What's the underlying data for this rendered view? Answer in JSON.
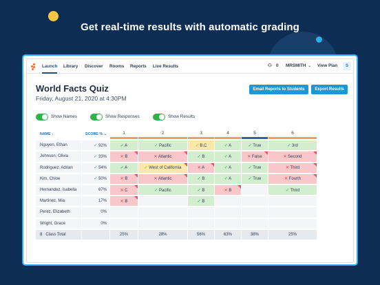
{
  "headline": "Get real-time results with automatic grading",
  "nav": {
    "items": [
      "Launch",
      "Library",
      "Discover",
      "Rooms",
      "Reports",
      "Live Results"
    ],
    "people_count": "0",
    "user": "MRSMITH",
    "view_plan": "View Plan",
    "avatar_letter": "S"
  },
  "quiz": {
    "title": "World Facts Quiz",
    "date": "Friday, August 21, 2020 at 4:30PM"
  },
  "buttons": {
    "email_reports": "Email Reports to Students",
    "export_results": "Export Results"
  },
  "toggles": {
    "show_names": "Show Names",
    "show_responses": "Show Responses",
    "show_results": "Show Results"
  },
  "table": {
    "name_header": "NAME",
    "score_header": "SCORE %",
    "question_colors": [
      "#f0a050",
      "#f0a050",
      "#f0a050",
      "#f0a050",
      "#2f5db0",
      "#f0a050"
    ],
    "questions": [
      "1",
      "2",
      "3",
      "4",
      "5",
      "6"
    ],
    "rows": [
      {
        "name": "Nguyen, Ethan",
        "score": "92%",
        "ans": [
          [
            "ok",
            "A"
          ],
          [
            "ok",
            "Pacific"
          ],
          [
            "part",
            "B,C"
          ],
          [
            "ok",
            "A"
          ],
          [
            "ok",
            "True"
          ],
          [
            "ok",
            "3rd"
          ]
        ]
      },
      {
        "name": "Johnson, Olivia",
        "score": "33%",
        "ans": [
          [
            "bad",
            "B"
          ],
          [
            "bad",
            "Atlantic"
          ],
          [
            "ok",
            "B"
          ],
          [
            "ok",
            "A"
          ],
          [
            "bad",
            "False"
          ],
          [
            "bad",
            "Second"
          ]
        ]
      },
      {
        "name": "Rodriguez, Adrian",
        "score": "54%",
        "ans": [
          [
            "ok",
            "A"
          ],
          [
            "part",
            "West of California"
          ],
          [
            "bad",
            "A"
          ],
          [
            "ok",
            "A"
          ],
          [
            "ok",
            "True"
          ],
          [
            "bad",
            "Third"
          ]
        ]
      },
      {
        "name": "Kim, Chloe",
        "score": "50%",
        "ans": [
          [
            "bad",
            "B"
          ],
          [
            "bad",
            "Atlantic"
          ],
          [
            "ok",
            "B"
          ],
          [
            "ok",
            "A"
          ],
          [
            "ok",
            "True"
          ],
          [
            "bad",
            "Fourth"
          ]
        ]
      },
      {
        "name": "Hernandez, Isabella",
        "score": "67%",
        "ans": [
          [
            "bad",
            "C"
          ],
          [
            "ok",
            "Pacific"
          ],
          [
            "ok",
            "B"
          ],
          [
            "bad",
            "B"
          ],
          [
            "emp",
            ""
          ],
          [
            "ok",
            "Third"
          ]
        ]
      },
      {
        "name": "Martinez, Mia",
        "score": "17%",
        "ans": [
          [
            "bad",
            "B"
          ],
          [
            "emp",
            ""
          ],
          [
            "ok",
            "B"
          ],
          [
            "emp",
            ""
          ],
          [
            "emp",
            ""
          ],
          [
            "emp",
            ""
          ]
        ]
      },
      {
        "name": "Perez, Elizabeth",
        "score": "0%",
        "ans": [
          [
            "emp",
            ""
          ],
          [
            "emp",
            ""
          ],
          [
            "emp",
            ""
          ],
          [
            "emp",
            ""
          ],
          [
            "emp",
            ""
          ],
          [
            "emp",
            ""
          ]
        ]
      },
      {
        "name": "Wright, Grace",
        "score": "0%",
        "ans": [
          [
            "emp",
            ""
          ],
          [
            "emp",
            ""
          ],
          [
            "emp",
            ""
          ],
          [
            "emp",
            ""
          ],
          [
            "emp",
            ""
          ],
          [
            "emp",
            ""
          ]
        ]
      }
    ],
    "total": {
      "count": "8",
      "label": "Class Total",
      "values": [
        "25%",
        "28%",
        "56%",
        "63%",
        "38%",
        "25%"
      ]
    }
  }
}
